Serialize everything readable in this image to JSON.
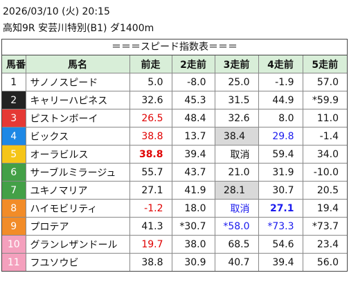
{
  "header": {
    "date": "2026/03/10 (火) 20:15",
    "race": "高知9R 安芸川特別(B1) ダ1400m"
  },
  "table": {
    "title": "＝＝＝スピード指数表＝＝＝",
    "columns": [
      "馬番",
      "馬名",
      "前走",
      "2走前",
      "3走前",
      "4走前",
      "5走前"
    ],
    "rows": [
      [
        "1",
        "サノノスピード",
        "5.0",
        "-8.0",
        "25.0",
        "-1.9",
        "57.0"
      ],
      [
        "2",
        "キャリーハピネス",
        "32.6",
        "45.3",
        "31.5",
        "44.9",
        "*59.9"
      ],
      [
        "3",
        "ピストンボーイ",
        "26.5",
        "48.4",
        "32.6",
        "8.0",
        "11.0"
      ],
      [
        "4",
        "ビックス",
        "38.8",
        "13.7",
        "38.4",
        "29.8",
        "-1.4"
      ],
      [
        "5",
        "オーラビルス",
        "38.8",
        "39.4",
        "取消",
        "59.4",
        "34.0"
      ],
      [
        "6",
        "サーブルミラージュ",
        "55.7",
        "43.7",
        "21.0",
        "31.9",
        "-10.0"
      ],
      [
        "7",
        "ユキノマリア",
        "27.1",
        "41.9",
        "28.1",
        "30.7",
        "20.5"
      ],
      [
        "8",
        "ハイモビリティ",
        "-1.2",
        "18.0",
        "取消",
        "27.1",
        "19.4"
      ],
      [
        "9",
        "プロテア",
        "41.3",
        "*30.7",
        "*58.0",
        "*73.3",
        "*73.7"
      ],
      [
        "10",
        "グランレザンドール",
        "19.7",
        "38.0",
        "68.5",
        "54.6",
        "23.4"
      ],
      [
        "11",
        "フユソウビ",
        "38.8",
        "30.9",
        "40.7",
        "39.4",
        "56.0"
      ]
    ]
  }
}
